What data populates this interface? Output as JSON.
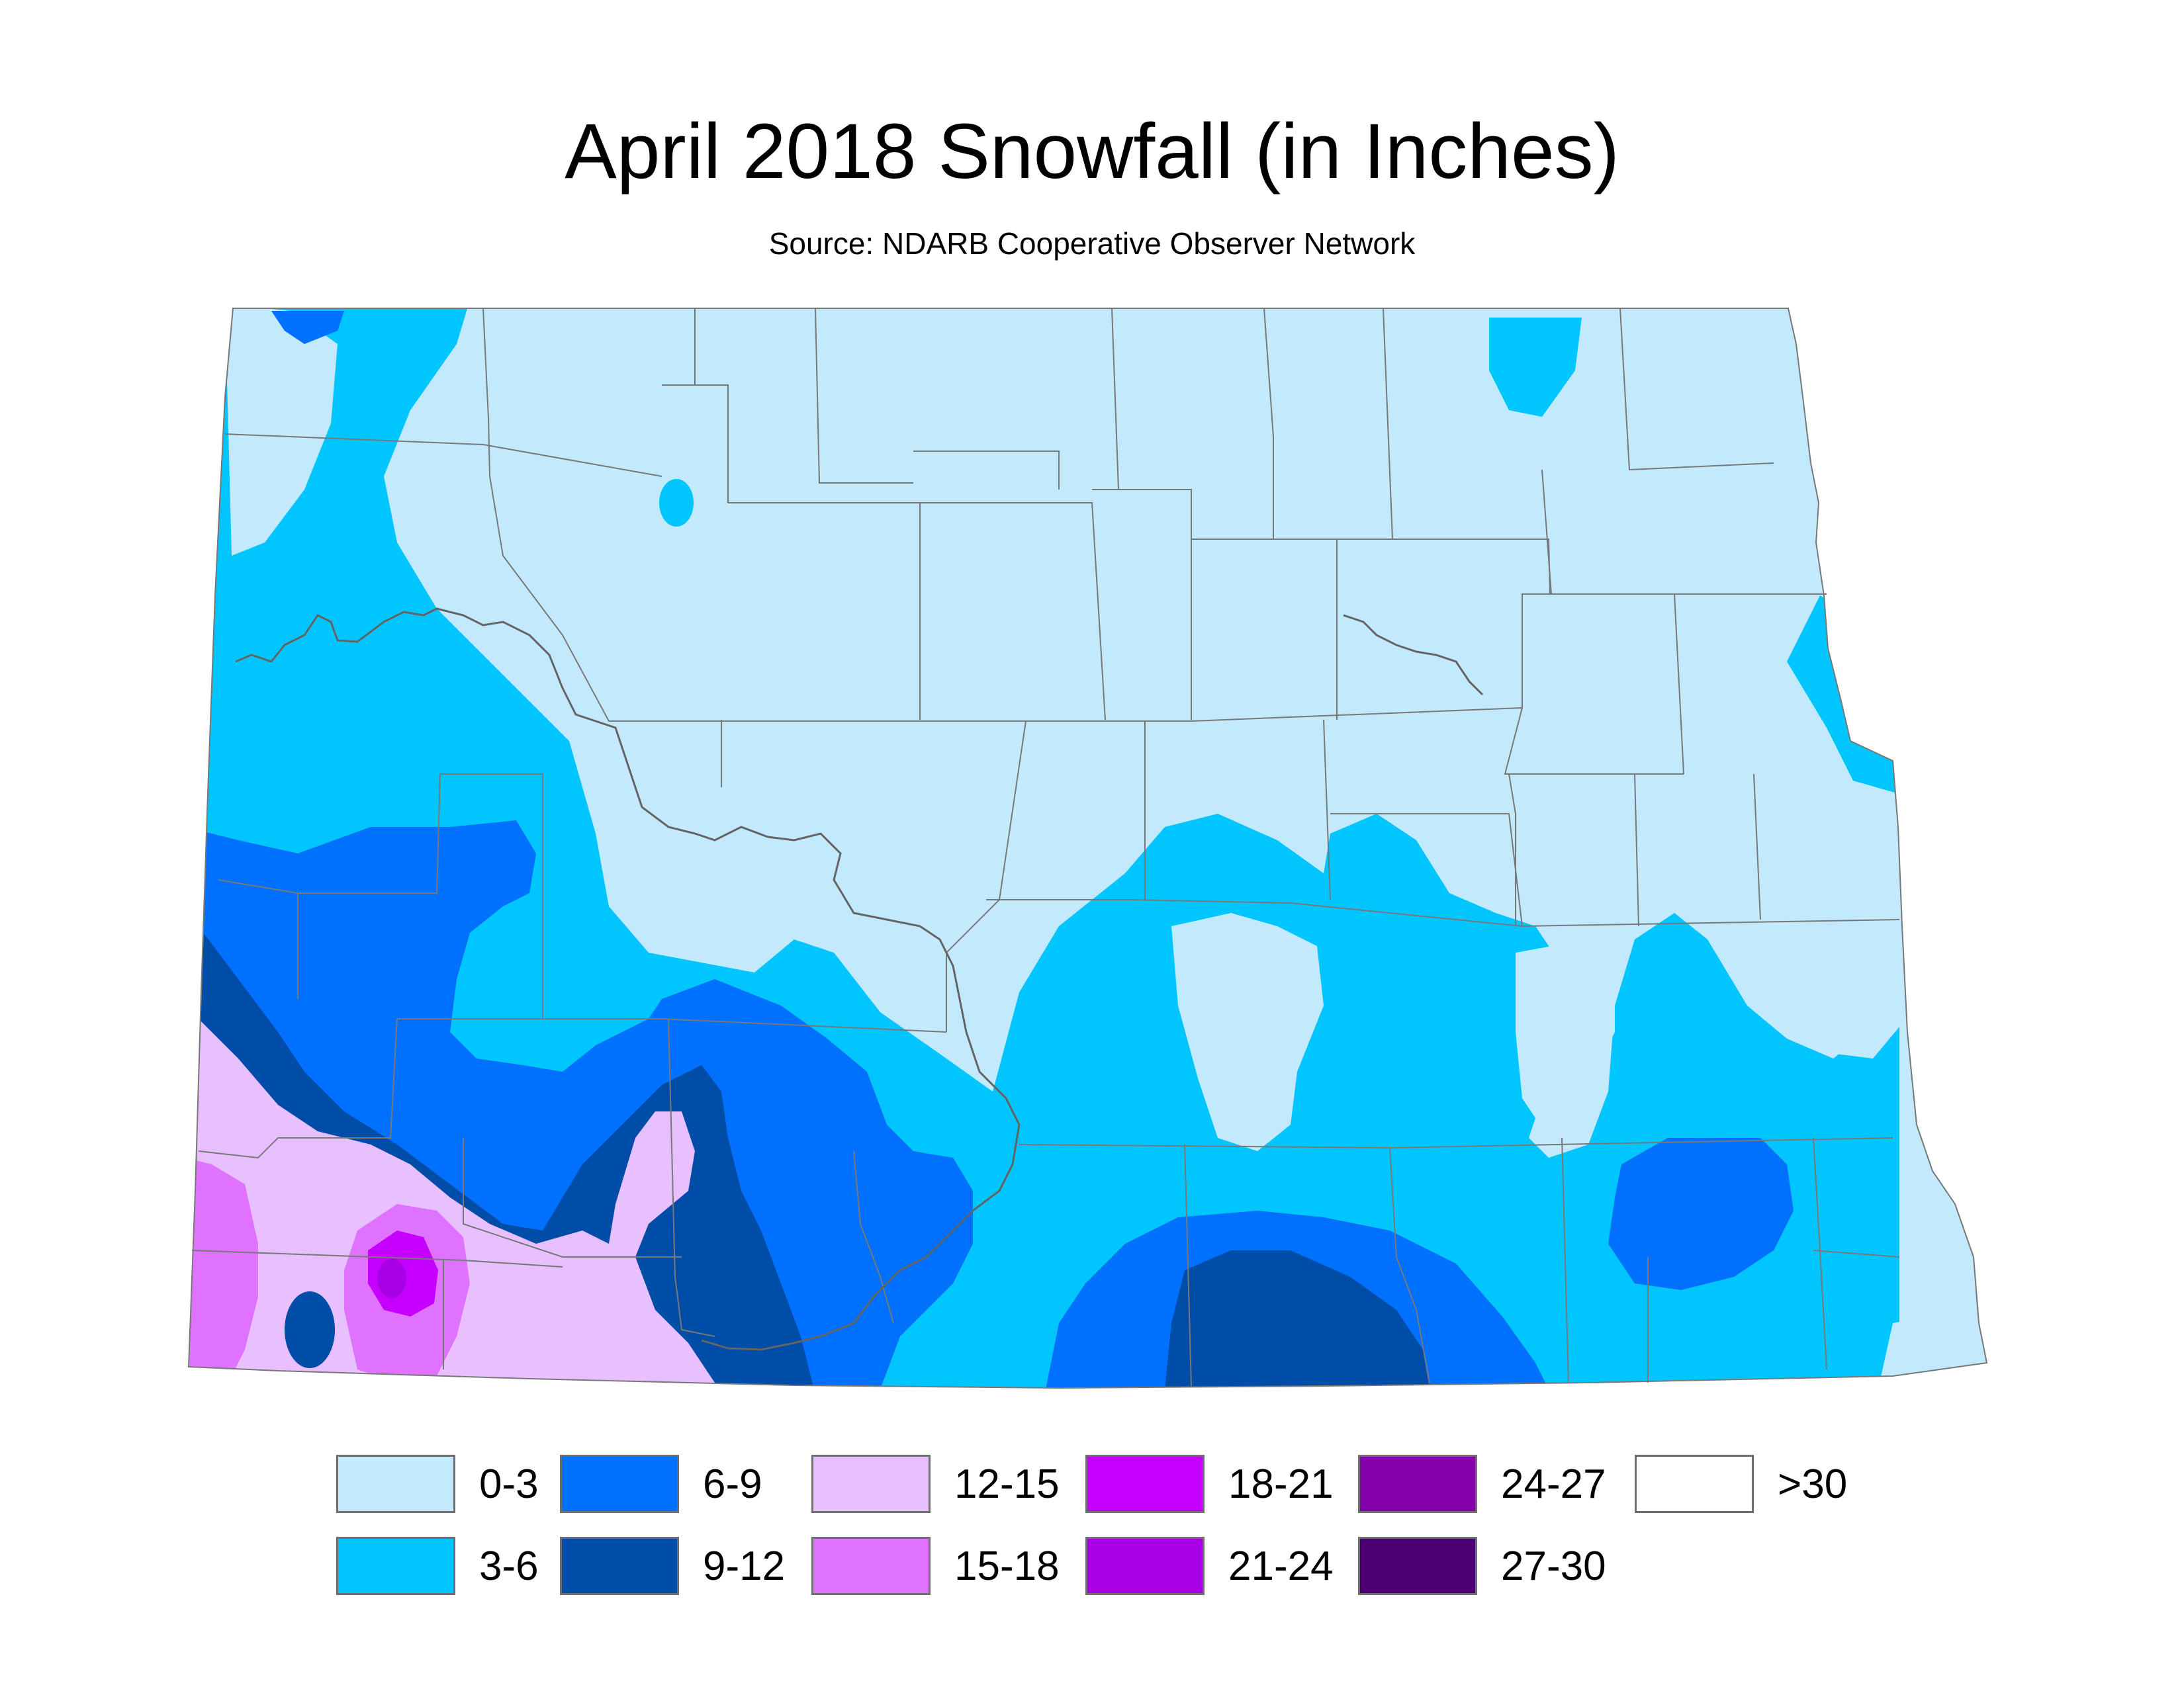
{
  "title": "April 2018 Snowfall (in Inches)",
  "subtitle": "Source: NDARB Cooperative Observer Network",
  "legend": [
    {
      "label": "0-3",
      "color": "#c2e9fc"
    },
    {
      "label": "3-6",
      "color": "#00c5ff"
    },
    {
      "label": "6-9",
      "color": "#0070ff"
    },
    {
      "label": "9-12",
      "color": "#004da8"
    },
    {
      "label": "12-15",
      "color": "#e8bfff"
    },
    {
      "label": "15-18",
      "color": "#df73ff"
    },
    {
      "label": "18-21",
      "color": "#c500ff"
    },
    {
      "label": "21-24",
      "color": "#a900e6"
    },
    {
      "label": "24-27",
      "color": "#8400a8"
    },
    {
      "label": "27-30",
      "color": "#4c0073"
    },
    {
      "label": ">30",
      "color": "#ffffff"
    }
  ]
}
